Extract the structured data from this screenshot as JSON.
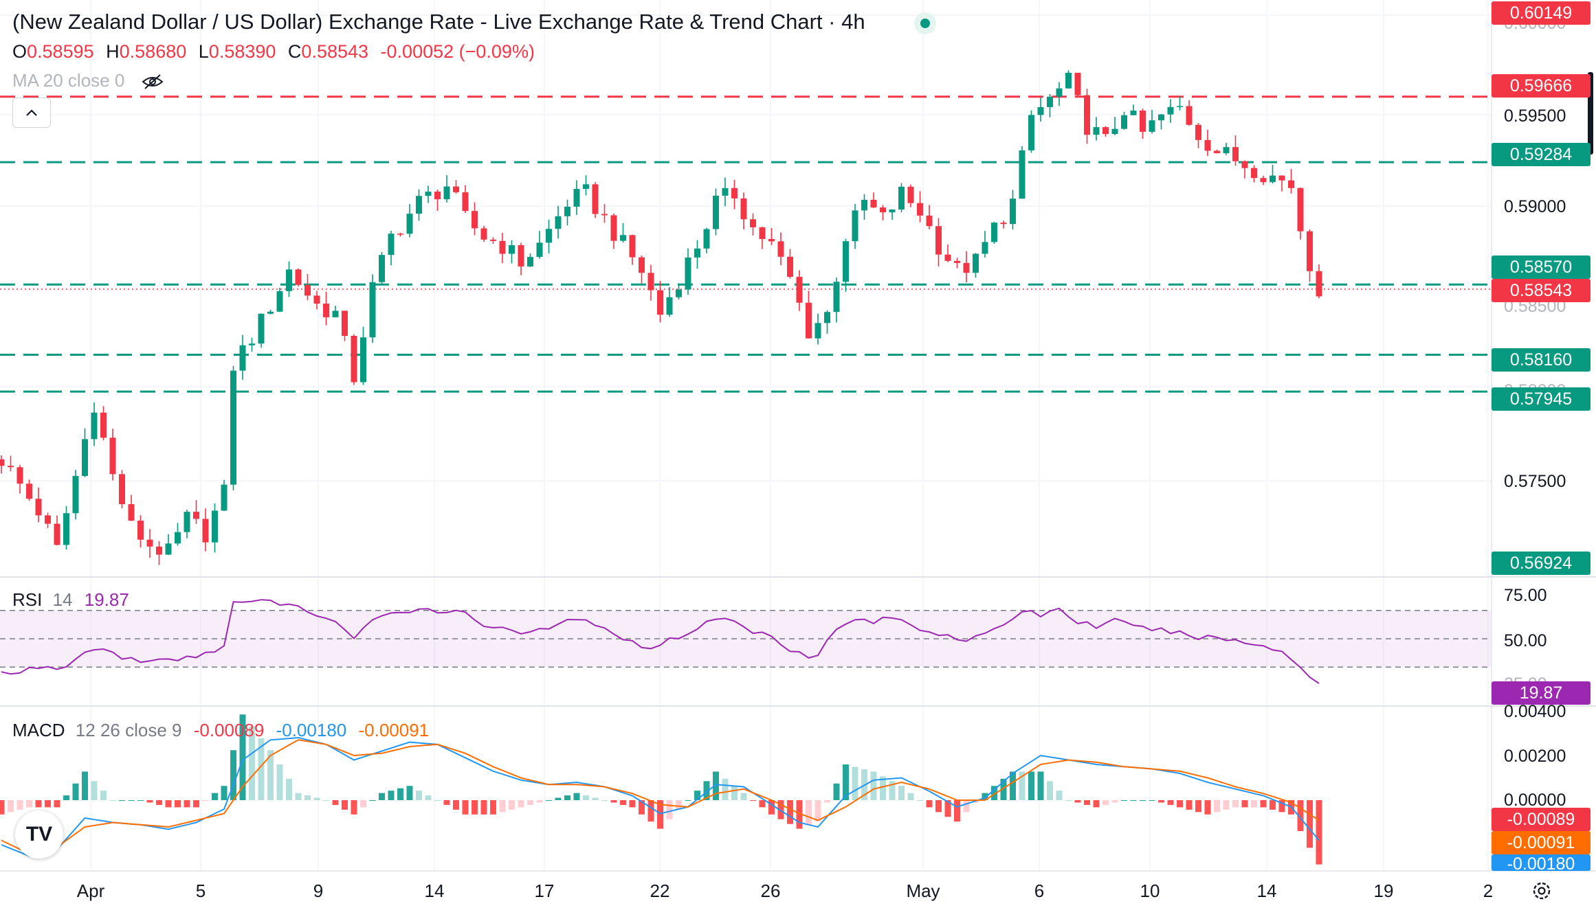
{
  "header": {
    "title": "(New Zealand Dollar / US Dollar) Exchange Rate - Live Exchange Rate & Trend Chart · 4h",
    "ohlc": [
      {
        "key": "O",
        "value": "0.58595"
      },
      {
        "key": "H",
        "value": "0.58680"
      },
      {
        "key": "L",
        "value": "0.58390"
      },
      {
        "key": "C",
        "value": "0.58543"
      }
    ],
    "change": "-0.00052 (−0.09%)",
    "ma_label": "MA 20 close 0",
    "collapse_icon": "chevron-up-icon",
    "visibility_icon": "eye-off-icon",
    "live_icon": "live-status-dot"
  },
  "price_axis": {
    "labels": [
      "0.59500",
      "0.59000",
      "0.57500"
    ],
    "partial_top": "0.60000",
    "partial_below": "0.58500",
    "partial_low": "0.58000"
  },
  "price_tags": [
    {
      "id": "tag-60149",
      "value": "0.60149",
      "color": "#f23645"
    },
    {
      "id": "tag-59666",
      "value": "0.59666",
      "color": "#f23645"
    },
    {
      "id": "tag-59284",
      "value": "0.59284",
      "color": "#089981"
    },
    {
      "id": "tag-58570",
      "value": "0.58570",
      "color": "#089981"
    },
    {
      "id": "tag-58543",
      "value": "0.58543",
      "color": "#f23645"
    },
    {
      "id": "tag-58160",
      "value": "0.58160",
      "color": "#089981"
    },
    {
      "id": "tag-57945",
      "value": "0.57945",
      "color": "#089981"
    },
    {
      "id": "tag-56924",
      "value": "0.56924",
      "color": "#089981"
    }
  ],
  "rsi": {
    "label": "RSI",
    "period": "14",
    "value": "19.87",
    "axis": [
      "75.00",
      "50.00",
      "25.00"
    ],
    "color": "#9c27b0"
  },
  "macd": {
    "label": "MACD",
    "params": "12 26 close 9",
    "hist_value": "-0.00089",
    "macd_value": "-0.00180",
    "signal_value": "-0.00091",
    "axis": [
      "0.00400",
      "0.00200",
      "0.00000"
    ],
    "tags": [
      {
        "value": "-0.00089",
        "color": "#f23645"
      },
      {
        "value": "-0.00091",
        "color": "#ff6d00"
      },
      {
        "value": "-0.00180",
        "color": "#2196f3"
      }
    ]
  },
  "x_axis": [
    "Apr",
    "5",
    "9",
    "14",
    "17",
    "22",
    "26",
    "May",
    "6",
    "10",
    "14",
    "19",
    "2"
  ],
  "logo_text": "TV",
  "settings_icon": "gear-icon",
  "colors": {
    "up": "#089981",
    "down": "#f23645",
    "rsi": "#9c27b0",
    "macd": "#2196f3",
    "signal": "#ff6d00"
  },
  "chart_data": {
    "type": "candlestick",
    "symbol": "NZD/USD",
    "timeframe": "4h",
    "ylim": [
      0.5692,
      0.6015
    ],
    "last_price": 0.58543,
    "horizontal_levels": [
      {
        "value": 0.59666,
        "style": "dashed",
        "color": "#f23645"
      },
      {
        "value": 0.59284,
        "style": "dashed",
        "color": "#089981"
      },
      {
        "value": 0.5857,
        "style": "dashed",
        "color": "#089981"
      },
      {
        "value": 0.5816,
        "style": "dashed",
        "color": "#089981"
      },
      {
        "value": 0.57945,
        "style": "dashed",
        "color": "#089981"
      }
    ],
    "close_path": [
      [
        0,
        0.5755
      ],
      [
        4,
        0.5725
      ],
      [
        6,
        0.5702
      ],
      [
        8,
        0.5745
      ],
      [
        10,
        0.5788
      ],
      [
        12,
        0.5745
      ],
      [
        14,
        0.5715
      ],
      [
        16,
        0.5705
      ],
      [
        18,
        0.57
      ],
      [
        20,
        0.572
      ],
      [
        22,
        0.5712
      ],
      [
        24,
        0.5735
      ],
      [
        25,
        0.581
      ],
      [
        28,
        0.5835
      ],
      [
        31,
        0.5865
      ],
      [
        34,
        0.5845
      ],
      [
        36,
        0.584
      ],
      [
        38,
        0.5803
      ],
      [
        40,
        0.5855
      ],
      [
        42,
        0.5885
      ],
      [
        45,
        0.5905
      ],
      [
        48,
        0.5915
      ],
      [
        50,
        0.5895
      ],
      [
        52,
        0.5885
      ],
      [
        54,
        0.588
      ],
      [
        56,
        0.587
      ],
      [
        58,
        0.588
      ],
      [
        61,
        0.5905
      ],
      [
        63,
        0.591
      ],
      [
        65,
        0.5895
      ],
      [
        67,
        0.588
      ],
      [
        69,
        0.5865
      ],
      [
        71,
        0.584
      ],
      [
        73,
        0.586
      ],
      [
        75,
        0.588
      ],
      [
        77,
        0.5905
      ],
      [
        79,
        0.591
      ],
      [
        81,
        0.589
      ],
      [
        83,
        0.588
      ],
      [
        85,
        0.586
      ],
      [
        87,
        0.583
      ],
      [
        89,
        0.584
      ],
      [
        91,
        0.5885
      ],
      [
        93,
        0.5905
      ],
      [
        95,
        0.5895
      ],
      [
        97,
        0.591
      ],
      [
        99,
        0.59
      ],
      [
        101,
        0.588
      ],
      [
        103,
        0.5865
      ],
      [
        105,
        0.587
      ],
      [
        107,
        0.589
      ],
      [
        109,
        0.5905
      ],
      [
        111,
        0.5955
      ],
      [
        113,
        0.5965
      ],
      [
        115,
        0.5975
      ],
      [
        117,
        0.595
      ],
      [
        119,
        0.594
      ],
      [
        121,
        0.596
      ],
      [
        123,
        0.5945
      ],
      [
        125,
        0.5955
      ],
      [
        127,
        0.596
      ],
      [
        129,
        0.5945
      ],
      [
        131,
        0.5935
      ],
      [
        133,
        0.593
      ],
      [
        135,
        0.5925
      ],
      [
        137,
        0.592
      ],
      [
        139,
        0.5915
      ],
      [
        140,
        0.589
      ],
      [
        141,
        0.587
      ],
      [
        142,
        0.5855
      ]
    ],
    "rsi_series": [
      [
        0,
        26
      ],
      [
        7,
        30
      ],
      [
        9,
        40
      ],
      [
        11,
        44
      ],
      [
        13,
        36
      ],
      [
        17,
        34
      ],
      [
        20,
        36
      ],
      [
        22,
        40
      ],
      [
        24,
        45
      ],
      [
        25,
        75
      ],
      [
        28,
        76
      ],
      [
        31,
        75
      ],
      [
        33,
        68
      ],
      [
        35,
        66
      ],
      [
        37,
        57
      ],
      [
        38,
        50
      ],
      [
        40,
        62
      ],
      [
        43,
        70
      ],
      [
        46,
        71
      ],
      [
        50,
        68
      ],
      [
        52,
        60
      ],
      [
        55,
        57
      ],
      [
        57,
        53
      ],
      [
        60,
        60
      ],
      [
        62,
        65
      ],
      [
        64,
        58
      ],
      [
        66,
        55
      ],
      [
        68,
        47
      ],
      [
        70,
        44
      ],
      [
        72,
        49
      ],
      [
        75,
        57
      ],
      [
        77,
        65
      ],
      [
        79,
        62
      ],
      [
        81,
        55
      ],
      [
        83,
        52
      ],
      [
        85,
        43
      ],
      [
        87,
        38
      ],
      [
        88,
        40
      ],
      [
        90,
        56
      ],
      [
        92,
        64
      ],
      [
        94,
        62
      ],
      [
        96,
        65
      ],
      [
        98,
        60
      ],
      [
        100,
        55
      ],
      [
        102,
        53
      ],
      [
        104,
        49
      ],
      [
        106,
        52
      ],
      [
        108,
        60
      ],
      [
        110,
        70
      ],
      [
        112,
        67
      ],
      [
        114,
        71
      ],
      [
        116,
        62
      ],
      [
        118,
        59
      ],
      [
        120,
        63
      ],
      [
        122,
        58
      ],
      [
        124,
        57
      ],
      [
        126,
        55
      ],
      [
        128,
        52
      ],
      [
        130,
        51
      ],
      [
        132,
        50
      ],
      [
        134,
        47
      ],
      [
        136,
        45
      ],
      [
        138,
        42
      ],
      [
        140,
        30
      ],
      [
        141,
        22
      ],
      [
        142,
        19.87
      ]
    ],
    "macd_series": [
      [
        0,
        -0.002
      ],
      [
        3,
        -0.0025
      ],
      [
        6,
        -0.0022
      ],
      [
        9,
        -0.0008
      ],
      [
        12,
        -0.001
      ],
      [
        15,
        -0.0011
      ],
      [
        18,
        -0.0013
      ],
      [
        21,
        -0.001
      ],
      [
        24,
        -0.0004
      ],
      [
        26,
        0.0018
      ],
      [
        29,
        0.0027
      ],
      [
        32,
        0.0028
      ],
      [
        35,
        0.0025
      ],
      [
        38,
        0.0018
      ],
      [
        41,
        0.0022
      ],
      [
        44,
        0.0026
      ],
      [
        47,
        0.0025
      ],
      [
        50,
        0.0019
      ],
      [
        53,
        0.0013
      ],
      [
        56,
        0.0009
      ],
      [
        59,
        0.0007
      ],
      [
        62,
        0.0008
      ],
      [
        65,
        0.0006
      ],
      [
        68,
        0.0002
      ],
      [
        71,
        -0.0006
      ],
      [
        74,
        -0.0003
      ],
      [
        77,
        0.0007
      ],
      [
        80,
        0.0006
      ],
      [
        83,
        -0.0002
      ],
      [
        86,
        -0.001
      ],
      [
        88,
        -0.0012
      ],
      [
        91,
        0.0002
      ],
      [
        94,
        0.0009
      ],
      [
        97,
        0.001
      ],
      [
        100,
        0.0004
      ],
      [
        103,
        -0.0003
      ],
      [
        106,
        0.0001
      ],
      [
        109,
        0.0012
      ],
      [
        112,
        0.002
      ],
      [
        115,
        0.0018
      ],
      [
        118,
        0.0016
      ],
      [
        121,
        0.0015
      ],
      [
        124,
        0.0014
      ],
      [
        127,
        0.0012
      ],
      [
        130,
        0.0008
      ],
      [
        133,
        0.0005
      ],
      [
        136,
        0.0002
      ],
      [
        139,
        -0.0003
      ],
      [
        142,
        -0.0018
      ]
    ],
    "signal_series": [
      [
        0,
        -0.0018
      ],
      [
        3,
        -0.0024
      ],
      [
        6,
        -0.0021
      ],
      [
        9,
        -0.0012
      ],
      [
        12,
        -0.001
      ],
      [
        15,
        -0.0011
      ],
      [
        18,
        -0.0012
      ],
      [
        21,
        -0.0009
      ],
      [
        24,
        -0.0006
      ],
      [
        26,
        0.0006
      ],
      [
        29,
        0.002
      ],
      [
        32,
        0.0027
      ],
      [
        35,
        0.0025
      ],
      [
        38,
        0.002
      ],
      [
        41,
        0.0021
      ],
      [
        44,
        0.0024
      ],
      [
        47,
        0.0025
      ],
      [
        50,
        0.0021
      ],
      [
        53,
        0.0015
      ],
      [
        56,
        0.001
      ],
      [
        59,
        0.0007
      ],
      [
        62,
        0.0007
      ],
      [
        65,
        0.0006
      ],
      [
        68,
        0.0003
      ],
      [
        71,
        -0.0002
      ],
      [
        74,
        -0.0003
      ],
      [
        77,
        0.0003
      ],
      [
        80,
        0.0005
      ],
      [
        83,
        0.0
      ],
      [
        86,
        -0.0006
      ],
      [
        88,
        -0.0009
      ],
      [
        91,
        -0.0003
      ],
      [
        94,
        0.0005
      ],
      [
        97,
        0.0008
      ],
      [
        100,
        0.0005
      ],
      [
        103,
        0.0
      ],
      [
        106,
        0.0
      ],
      [
        109,
        0.0008
      ],
      [
        112,
        0.0016
      ],
      [
        115,
        0.0018
      ],
      [
        118,
        0.0017
      ],
      [
        121,
        0.0015
      ],
      [
        124,
        0.0014
      ],
      [
        127,
        0.0013
      ],
      [
        130,
        0.001
      ],
      [
        133,
        0.0006
      ],
      [
        136,
        0.0003
      ],
      [
        139,
        -0.0001
      ],
      [
        142,
        -0.0009
      ]
    ]
  }
}
